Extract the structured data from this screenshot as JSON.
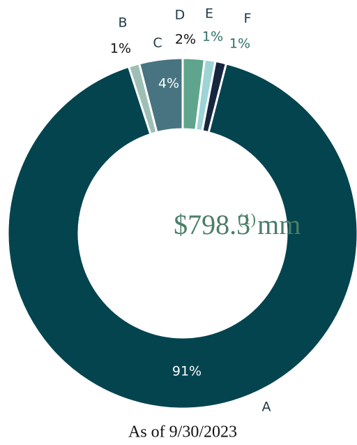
{
  "chart_data": {
    "type": "pie",
    "categories": [
      "A",
      "B",
      "C",
      "D",
      "E",
      "F"
    ],
    "values": [
      91,
      1,
      4,
      2,
      1,
      1
    ],
    "value_labels": [
      "91%",
      "1%",
      "4%",
      "2%",
      "1%",
      "1%"
    ],
    "colors": [
      "#03444f",
      "#9ebfb5",
      "#477480",
      "#5fa58d",
      "#9dd4d6",
      "#17263f"
    ],
    "center_text": "$798.3 mm",
    "center_note": "(1)",
    "footnote": "As of 9/30/2023"
  }
}
